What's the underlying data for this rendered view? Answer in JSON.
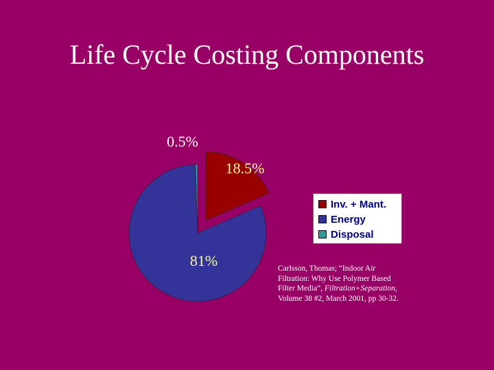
{
  "slide": {
    "title": "Life Cycle Costing Components",
    "background_color": "#990066"
  },
  "chart_data": {
    "type": "pie",
    "categories": [
      "Inv. + Mant.",
      "Energy",
      "Disposal"
    ],
    "values": [
      18.5,
      81,
      0.5
    ],
    "data_labels": [
      "18.5%",
      "81%",
      "0.5%"
    ],
    "colors": [
      "#990000",
      "#333399",
      "#339999"
    ],
    "label_color": "#ffff99",
    "exploded": true,
    "legend_placement": "right"
  },
  "citation": {
    "line1": "Carlsson, Thomas; “Indoor Air",
    "line2": "Filtration: Why Use Polymer Based",
    "line3_pre": "Filter Media”, ",
    "line3_italic": "Filtration+Separation",
    "line3_post": ",",
    "line4": "Volume 38 #2, March 2001, pp 30-32."
  }
}
